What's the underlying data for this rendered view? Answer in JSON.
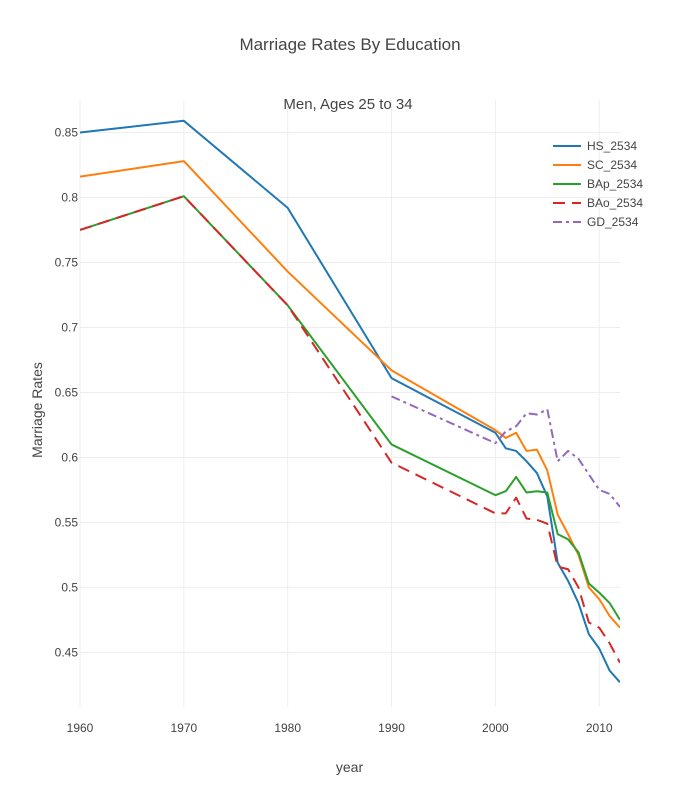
{
  "chart_data": {
    "type": "line",
    "title": "Marriage Rates By Education",
    "subtitle": "Men, Ages 25 to 34",
    "xlabel": "year",
    "ylabel": "Marriage Rates",
    "xlim": [
      1960,
      2012
    ],
    "ylim": [
      0.408,
      0.875
    ],
    "x_ticks": [
      1960,
      1970,
      1980,
      1990,
      2000,
      2010
    ],
    "y_ticks": [
      0.45,
      0.5,
      0.55,
      0.6,
      0.65,
      0.7,
      0.75,
      0.8,
      0.85
    ],
    "grid": true,
    "legend_position": "top-right",
    "series": [
      {
        "name": "HS_2534",
        "color": "#1f77b4",
        "dash": "solid",
        "points": [
          [
            1960,
            0.85
          ],
          [
            1970,
            0.859
          ],
          [
            1980,
            0.792
          ],
          [
            1990,
            0.661
          ],
          [
            2000,
            0.619
          ],
          [
            2001,
            0.607
          ],
          [
            2002,
            0.605
          ],
          [
            2003,
            0.597
          ],
          [
            2004,
            0.588
          ],
          [
            2005,
            0.57
          ],
          [
            2006,
            0.519
          ],
          [
            2007,
            0.505
          ],
          [
            2008,
            0.488
          ],
          [
            2009,
            0.464
          ],
          [
            2010,
            0.453
          ],
          [
            2011,
            0.436
          ],
          [
            2012,
            0.427
          ]
        ]
      },
      {
        "name": "SC_2534",
        "color": "#ff7f0e",
        "dash": "solid",
        "points": [
          [
            1960,
            0.816
          ],
          [
            1970,
            0.828
          ],
          [
            1980,
            0.743
          ],
          [
            1990,
            0.667
          ],
          [
            2000,
            0.621
          ],
          [
            2001,
            0.615
          ],
          [
            2002,
            0.619
          ],
          [
            2003,
            0.605
          ],
          [
            2004,
            0.606
          ],
          [
            2005,
            0.59
          ],
          [
            2006,
            0.556
          ],
          [
            2007,
            0.541
          ],
          [
            2008,
            0.525
          ],
          [
            2009,
            0.5
          ],
          [
            2010,
            0.491
          ],
          [
            2011,
            0.478
          ],
          [
            2012,
            0.469
          ]
        ]
      },
      {
        "name": "BAp_2534",
        "color": "#2ca02c",
        "dash": "solid",
        "points": [
          [
            1960,
            0.775
          ],
          [
            1970,
            0.801
          ],
          [
            1980,
            0.717
          ],
          [
            1990,
            0.61
          ],
          [
            2000,
            0.571
          ],
          [
            2001,
            0.574
          ],
          [
            2002,
            0.585
          ],
          [
            2003,
            0.573
          ],
          [
            2004,
            0.574
          ],
          [
            2005,
            0.573
          ],
          [
            2006,
            0.541
          ],
          [
            2007,
            0.537
          ],
          [
            2008,
            0.527
          ],
          [
            2009,
            0.503
          ],
          [
            2010,
            0.496
          ],
          [
            2011,
            0.488
          ],
          [
            2012,
            0.475
          ]
        ]
      },
      {
        "name": "BAo_2534",
        "color": "#d62728",
        "dash": "dash",
        "points": [
          [
            1960,
            0.775
          ],
          [
            1970,
            0.801
          ],
          [
            1980,
            0.717
          ],
          [
            1990,
            0.596
          ],
          [
            2000,
            0.557
          ],
          [
            2001,
            0.557
          ],
          [
            2002,
            0.569
          ],
          [
            2003,
            0.553
          ],
          [
            2004,
            0.552
          ],
          [
            2005,
            0.549
          ],
          [
            2006,
            0.516
          ],
          [
            2007,
            0.514
          ],
          [
            2008,
            0.5
          ],
          [
            2009,
            0.473
          ],
          [
            2010,
            0.469
          ],
          [
            2011,
            0.457
          ],
          [
            2012,
            0.442
          ]
        ]
      },
      {
        "name": "GD_2534",
        "color": "#9467bd",
        "dash": "dashdot",
        "points": [
          [
            1990,
            0.647
          ],
          [
            2000,
            0.611
          ],
          [
            2001,
            0.62
          ],
          [
            2002,
            0.624
          ],
          [
            2003,
            0.634
          ],
          [
            2004,
            0.633
          ],
          [
            2005,
            0.637
          ],
          [
            2006,
            0.597
          ],
          [
            2007,
            0.605
          ],
          [
            2008,
            0.599
          ],
          [
            2009,
            0.587
          ],
          [
            2010,
            0.575
          ],
          [
            2011,
            0.572
          ],
          [
            2012,
            0.562
          ]
        ]
      }
    ]
  }
}
